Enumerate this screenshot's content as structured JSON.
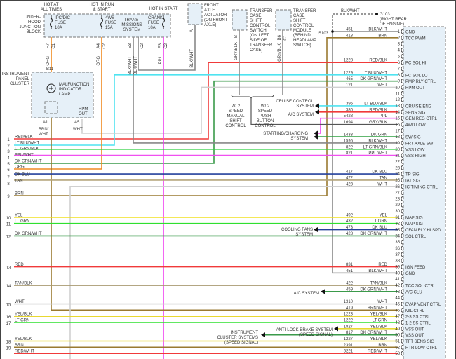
{
  "wire_colors": {
    "RED": "#f03a3a",
    "RED/BLK": "#f03a3a",
    "RED/WHT": "#f03a3a",
    "LT BLU/WHT": "#4fe3f0",
    "LT BLU/BLK": "#4fe3f0",
    "LT GRN": "#2fe02f",
    "LT GRN/BLK": "#2fd040",
    "DK GRN": "#2fa040",
    "DK GRN/WHT": "#3a9a4a",
    "PPL": "#f040f0",
    "PPL/WHT": "#f050f0",
    "ORG": "#f08a20",
    "DK BLU": "#24409c",
    "TAN": "#b4a478",
    "TAN/BLK": "#a89a70",
    "BRN": "#9a7a30",
    "BRN/WHT": "#9a7a30",
    "YEL": "#f0e020",
    "YEL/BLK": "#e8d830",
    "WHT": "#d0d0d0",
    "BLK/WHT": "#888888",
    "GRY/BLK": "#8a8a8a"
  },
  "junction_block": {
    "label": [
      "UNDER-",
      "HOOD",
      "JUNCTION",
      "BLOCK"
    ],
    "hot_at_all_times": [
      "HOT AT",
      "ALL TIMES"
    ],
    "hot_in_run_start": [
      "HOT IN RUN",
      "& START"
    ],
    "hot_in_start": [
      "HOT IN START"
    ],
    "fuses": [
      {
        "name": [
          "IPC/DIC",
          "FUSE",
          "10A"
        ],
        "terminal": "F7",
        "conn": "C1",
        "wire": "ORG"
      },
      {
        "name": [
          "4WS",
          "FUSE",
          "15A"
        ],
        "terminal": "A4",
        "conn": "C2",
        "wire": "ORG"
      },
      {
        "name": [
          "CRANK",
          "FUSE",
          "10A"
        ],
        "terminal": "F3",
        "conn": "C2",
        "wire": "PPL"
      }
    ],
    "trans_system": [
      "TRANS-",
      "MISSIONS",
      "SYSTEM"
    ],
    "trans_terminal": "E3",
    "trans_conn": "C2",
    "trans_wires": [
      "BLK/WHT",
      "BLK/WHT"
    ]
  },
  "front_axle_actuator": {
    "label": [
      "FRONT",
      "AXLE",
      "ACTUATOR",
      "(ON FRONT",
      "AXLE)"
    ],
    "terminal": "A",
    "wire": "BLK/WHT"
  },
  "transfer_switch": {
    "label": [
      "TRANSFER",
      "CASE",
      "SHIFT",
      "CONTROL",
      "SWITCH",
      "(ON LEFT",
      "SIDE OF",
      "TRANSFER",
      "CASE)"
    ],
    "terminal": "B",
    "wire": "GRY/BLK"
  },
  "transfer_module": {
    "label": [
      "TRANSFER",
      "CASE",
      "SHIFT",
      "CONTROL",
      "MODULE",
      "(BEHIND",
      "HEADLAMP",
      "SWITCH)"
    ],
    "terminal": "B6",
    "conn": "C1",
    "wire": "GRY/BLK"
  },
  "manual_shift": [
    "W/ 2",
    "SPEED",
    "MANUAL",
    "SHIFT",
    "CONTROL"
  ],
  "push_button": [
    "W/ 2",
    "SPEED",
    "PUSH",
    "BUTTON",
    "CONTROL"
  ],
  "ground": {
    "wire": "BLK/WHT",
    "name": [
      "G103",
      "(RIGHT REAR",
      "OF ENGINE)"
    ],
    "splice": "S103"
  },
  "instrument_cluster": {
    "label": [
      "INSTRUMENT",
      "PANEL",
      "CLUSTER"
    ],
    "terminal_top": "B11",
    "lamp": [
      "MALFUNCTION",
      "INDICATOR",
      "LAMP"
    ],
    "rpm_out": [
      "RPM",
      "OUT"
    ],
    "terminal_a1": "A1",
    "wire_a1": [
      "BRN/",
      "WHT"
    ],
    "terminal_a5": "A5",
    "wire_a5": "WHT"
  },
  "destinations": {
    "cruise": [
      "CRUISE CONTROL",
      "SYSTEM"
    ],
    "ac14": [
      "A/C SYSTEM"
    ],
    "starting": [
      "STARTING/CHARGING",
      "SYSTEM"
    ],
    "cooling": [
      "COOLING FANS",
      "SYSTEM"
    ],
    "ac43": [
      "A/C SYSTEM"
    ],
    "abs": [
      "ANTI-LOCK BRAKE SYSTEM",
      "(SPEED SIGNAL)"
    ],
    "cluster": [
      "INSTRUMENT",
      "CLUSTER SYSTEMS",
      "(SPEED SIGNAL)"
    ]
  },
  "left_wires": [
    {
      "num": "1",
      "color": "RED/BLK"
    },
    {
      "num": "2",
      "color": "LT BLU/WHT"
    },
    {
      "num": "3",
      "color": "LT GRN/BLK"
    },
    {
      "num": "4",
      "color": "PPL/WHT"
    },
    {
      "num": "5",
      "color": "DK GRN/WHT"
    },
    {
      "num": "6",
      "color": "ORG"
    },
    {
      "num": "7",
      "color": "DK BLU"
    },
    {
      "num": "8",
      "color": "TAN"
    },
    {
      "num": "9",
      "color": "BRN"
    },
    {
      "num": "10",
      "color": "YEL"
    },
    {
      "num": "11",
      "color": "LT GRN"
    },
    {
      "num": "12",
      "color": "DK GRN/WHT"
    },
    {
      "num": "13",
      "color": "RED"
    },
    {
      "num": "14",
      "color": "TAN/BLK"
    },
    {
      "num": "15",
      "color": "WHT"
    },
    {
      "num": "16",
      "color": "YEL/BLK"
    },
    {
      "num": "17",
      "color": "LT GRN"
    },
    {
      "num": "18",
      "color": "YEL/BLK"
    },
    {
      "num": "19",
      "color": "BRN"
    },
    {
      "num": "",
      "color": "RED/WHT"
    }
  ],
  "pcm_pins": [
    {
      "pin": 1,
      "circuit": "451",
      "color": "BLK/WHT",
      "func": "GND"
    },
    {
      "pin": 2,
      "circuit": "418",
      "color": "BRN",
      "func": "TCC PWM"
    },
    {
      "pin": 3
    },
    {
      "pin": 4
    },
    {
      "pin": 5
    },
    {
      "pin": 6,
      "circuit": "1228",
      "color": "RED/BLK",
      "func": "PC SOL HI"
    },
    {
      "pin": 7
    },
    {
      "pin": 8,
      "circuit": "1229",
      "color": "LT BLU/WHT",
      "func": "PC SOL LO"
    },
    {
      "pin": 9,
      "circuit": "465",
      "color": "DK GRN/WHT",
      "func": "PMP RLY CTRL"
    },
    {
      "pin": 10,
      "circuit": "121",
      "color": "WHT",
      "func": "RPM OUT"
    },
    {
      "pin": 11
    },
    {
      "pin": 12
    },
    {
      "pin": 13,
      "circuit": "396",
      "color": "LT BLU/BLK",
      "func": "CRUISE ENG"
    },
    {
      "pin": 14,
      "circuit": "380",
      "color": "RED/BLK",
      "func": "SENS SIG"
    },
    {
      "pin": 15,
      "circuit": "5428",
      "color": "PPL",
      "func": "GEN REG CTRL"
    },
    {
      "pin": 16,
      "circuit": "1694",
      "color": "GRY/BLK",
      "func": "4WD LOW"
    },
    {
      "pin": 17
    },
    {
      "pin": 18,
      "circuit": "1433",
      "color": "DK GRN",
      "func": "SW SIG"
    },
    {
      "pin": 19,
      "circuit": "1595",
      "color": "BLK/WHT",
      "func": "FRT AXLE SW"
    },
    {
      "pin": 20,
      "circuit": "822",
      "color": "LT GRN/BLK",
      "func": "VSS LOW"
    },
    {
      "pin": 21,
      "circuit": "821",
      "color": "PPL/WHT",
      "func": "VSS HIGH"
    },
    {
      "pin": 22
    },
    {
      "pin": 23
    },
    {
      "pin": 24,
      "circuit": "417",
      "color": "DK BLU",
      "func": "TP SIG"
    },
    {
      "pin": 25,
      "circuit": "472",
      "color": "TAN",
      "func": "IAT SIG"
    },
    {
      "pin": 26,
      "circuit": "423",
      "color": "WHT",
      "func": "IC TIMING CTRL"
    },
    {
      "pin": 27
    },
    {
      "pin": 28
    },
    {
      "pin": 29
    },
    {
      "pin": 30
    },
    {
      "pin": 31,
      "circuit": "492",
      "color": "YEL",
      "func": "MAF SIG"
    },
    {
      "pin": 32,
      "circuit": "432",
      "color": "LT GRN",
      "func": "MAP SIG"
    },
    {
      "pin": 33,
      "circuit": "473",
      "color": "DK BLU",
      "func": "CFAN RLY HI SPD"
    },
    {
      "pin": 34,
      "circuit": "428",
      "color": "DK GRN/WHT",
      "func": "SOL CTRL"
    },
    {
      "pin": 35
    },
    {
      "pin": 36
    },
    {
      "pin": 37
    },
    {
      "pin": 38
    },
    {
      "pin": 39,
      "circuit": "831",
      "color": "RED",
      "func": "IGN FEED"
    },
    {
      "pin": 40,
      "circuit": "451",
      "color": "BLK/WHT",
      "func": "GND"
    },
    {
      "pin": 41
    },
    {
      "pin": 42,
      "circuit": "422",
      "color": "TAN/BLK",
      "func": "TCC SOL CTRL"
    },
    {
      "pin": 43,
      "circuit": "459",
      "color": "DK GRN/WHT",
      "func": "A/C CLU"
    },
    {
      "pin": 44
    },
    {
      "pin": 45,
      "circuit": "1310",
      "color": "WHT",
      "func": "EVAP VENT CTRL"
    },
    {
      "pin": 46,
      "circuit": "419",
      "color": "BRN/WHT",
      "func": "MIL CTRL"
    },
    {
      "pin": 47,
      "circuit": "1223",
      "color": "YEL/BLK",
      "func": "2-3 SS CTRL"
    },
    {
      "pin": 48,
      "circuit": "1222",
      "color": "LT GRN",
      "func": "1-2 SS CTRL"
    },
    {
      "pin": 49,
      "circuit": "1827",
      "color": "YEL/BLK",
      "func": "VSS OUT"
    },
    {
      "pin": 50,
      "circuit": "817",
      "color": "DK GRN/WHT",
      "func": "VSS OUT"
    },
    {
      "pin": 51,
      "circuit": "1227",
      "color": "YEL/BLK",
      "func": "TFT SENS SIG"
    },
    {
      "pin": 52,
      "circuit": "2391",
      "color": "BRN",
      "func": "HTR LOW CTRL"
    },
    {
      "pin": 53,
      "circuit": "3221",
      "color": "RED/WHT",
      "func": ""
    }
  ]
}
